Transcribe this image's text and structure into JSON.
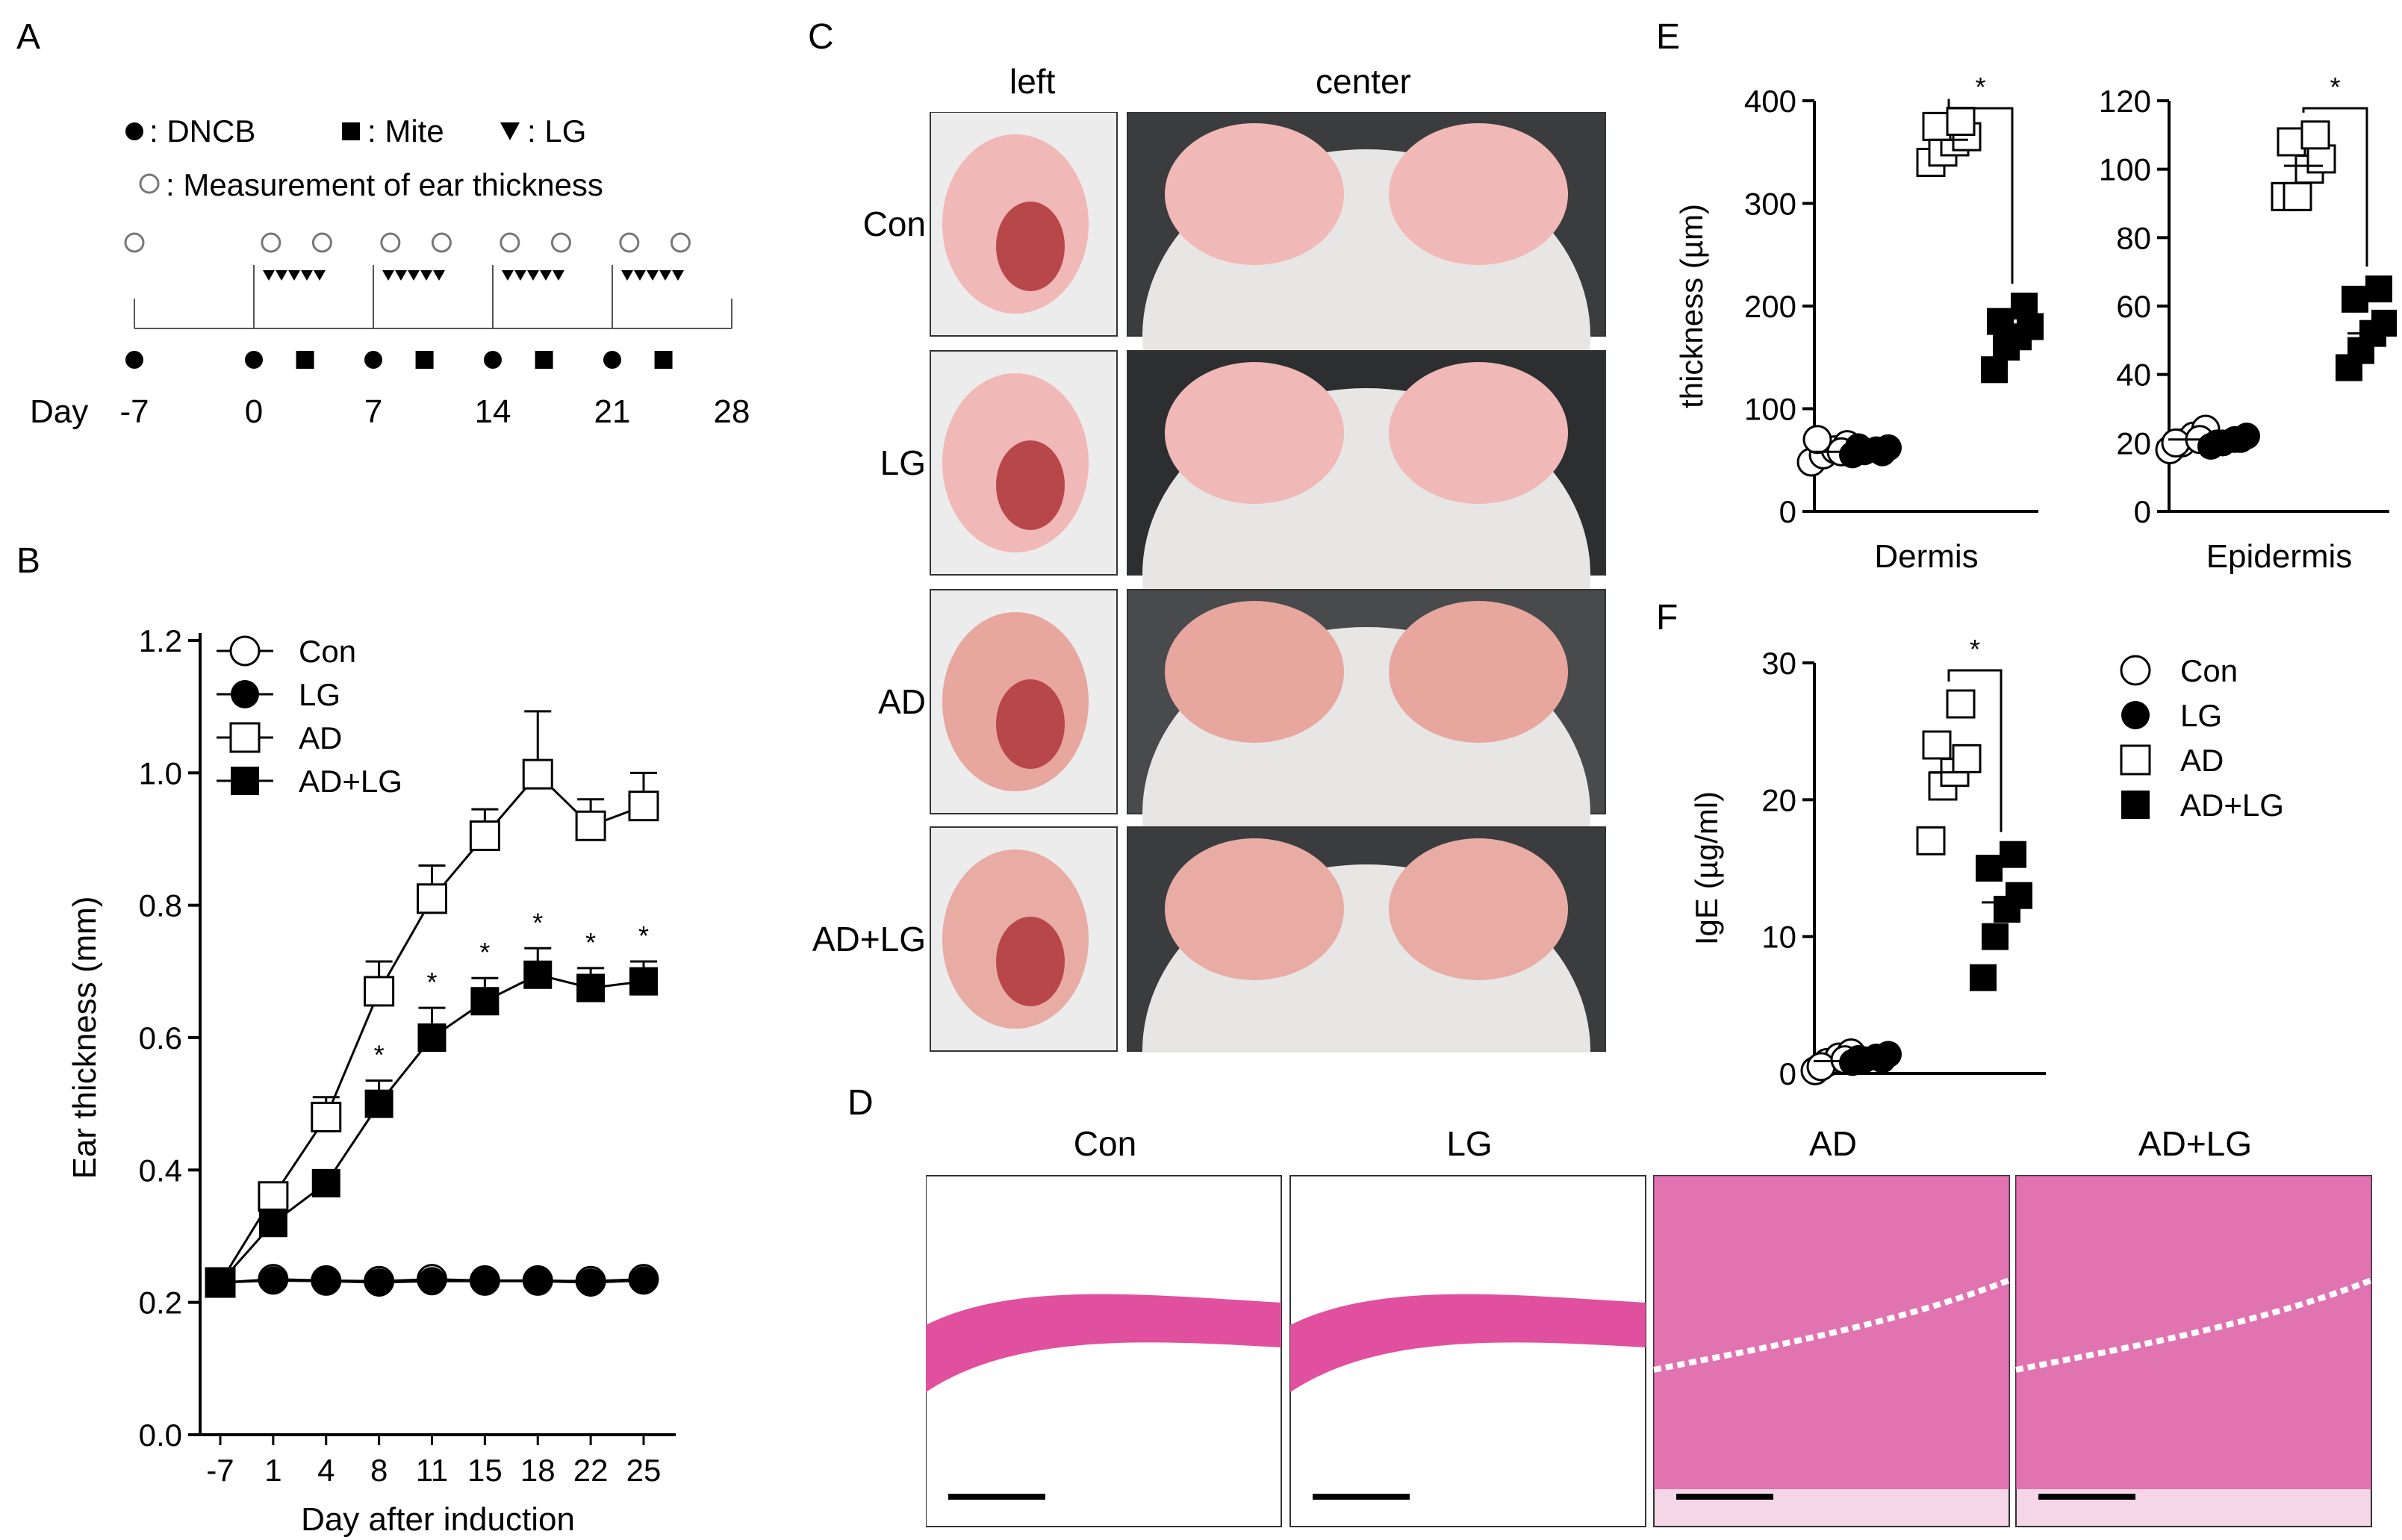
{
  "panels": {
    "A": "A",
    "B": "B",
    "C": "C",
    "D": "D",
    "E": "E",
    "F": "F"
  },
  "schedule": {
    "legend_dncb": ": DNCB",
    "legend_mite": ": Mite",
    "legend_lg": ": LG",
    "legend_measure": ": Measurement of ear thickness",
    "day_label": "Day",
    "day_ticks": [
      "-7",
      "0",
      "7",
      "14",
      "21",
      "28"
    ]
  },
  "photos": {
    "col_left": "left",
    "col_center": "center",
    "rows": [
      "Con",
      "LG",
      "AD",
      "AD+LG"
    ]
  },
  "histology": {
    "titles": [
      "Con",
      "LG",
      "AD",
      "AD+LG"
    ]
  },
  "colors": {
    "skin_pink": "#f0b8b6",
    "he_pink": "#e0509e",
    "fur": "#e8e6e4",
    "dark_bg": "#2a2c2e"
  },
  "chart_data": [
    {
      "type": "line",
      "panel": "B",
      "xlabel": "Day after induction",
      "ylabel": "Ear thickness (mm)",
      "categories": [
        "-7",
        "1",
        "4",
        "8",
        "11",
        "15",
        "18",
        "22",
        "25"
      ],
      "ylim": [
        0.0,
        1.2
      ],
      "yticks": [
        "0.0",
        "0.2",
        "0.4",
        "0.6",
        "0.8",
        "1.0",
        "1.2"
      ],
      "legend_position": "top-left",
      "series": [
        {
          "name": "Con",
          "marker": "open-circle",
          "values": [
            0.23,
            0.235,
            0.233,
            0.232,
            0.235,
            0.233,
            0.233,
            0.232,
            0.235
          ],
          "error": [
            0.005,
            0.005,
            0.005,
            0.005,
            0.01,
            0.005,
            0.005,
            0.005,
            0.005
          ]
        },
        {
          "name": "LG",
          "marker": "filled-circle",
          "values": [
            0.23,
            0.233,
            0.232,
            0.23,
            0.232,
            0.232,
            0.232,
            0.23,
            0.233
          ],
          "error": [
            0.005,
            0.005,
            0.005,
            0.005,
            0.005,
            0.005,
            0.005,
            0.005,
            0.005
          ]
        },
        {
          "name": "AD",
          "marker": "open-square",
          "values": [
            0.23,
            0.36,
            0.48,
            0.67,
            0.81,
            0.905,
            0.998,
            0.92,
            0.95
          ],
          "error": [
            0.005,
            0.02,
            0.03,
            0.045,
            0.05,
            0.04,
            0.095,
            0.04,
            0.05
          ]
        },
        {
          "name": "AD+LG",
          "marker": "filled-square",
          "values": [
            0.23,
            0.32,
            0.38,
            0.5,
            0.6,
            0.655,
            0.695,
            0.675,
            0.685
          ],
          "error": [
            0.005,
            0.02,
            0.02,
            0.035,
            0.045,
            0.035,
            0.04,
            0.03,
            0.03
          ]
        }
      ],
      "significance": [
        {
          "category": "8",
          "label": "*"
        },
        {
          "category": "11",
          "label": "*"
        },
        {
          "category": "15",
          "label": "*"
        },
        {
          "category": "18",
          "label": "*"
        },
        {
          "category": "22",
          "label": "*"
        },
        {
          "category": "25",
          "label": "*"
        }
      ]
    },
    {
      "type": "scatter",
      "panel": "E",
      "xlabel": "Dermis",
      "ylabel": "thickness (µm)",
      "ylim": [
        0,
        400
      ],
      "yticks": [
        "0",
        "100",
        "200",
        "300",
        "400"
      ],
      "groups": [
        {
          "name": "Con",
          "values": [
            48,
            55,
            60,
            65,
            70,
            58
          ],
          "mean": 58
        },
        {
          "name": "LG",
          "values": [
            55,
            58,
            60,
            62,
            63,
            57
          ],
          "mean": 60
        },
        {
          "name": "AD",
          "values": [
            340,
            350,
            360,
            365,
            375,
            380
          ],
          "mean": 362
        },
        {
          "name": "AD+LG",
          "values": [
            138,
            160,
            170,
            180,
            185,
            200
          ],
          "mean": 172
        }
      ],
      "significance": "*"
    },
    {
      "type": "scatter",
      "panel": "E",
      "xlabel": "Epidermis",
      "ylabel": "",
      "ylim": [
        0,
        120
      ],
      "yticks": [
        "0",
        "20",
        "40",
        "60",
        "80",
        "100",
        "120"
      ],
      "groups": [
        {
          "name": "Con",
          "values": [
            18,
            20,
            22,
            24,
            20,
            21
          ],
          "mean": 21
        },
        {
          "name": "LG",
          "values": [
            19,
            20,
            21,
            22,
            20,
            21
          ],
          "mean": 20
        },
        {
          "name": "AD",
          "values": [
            92,
            92,
            100,
            103,
            108,
            110
          ],
          "mean": 101
        },
        {
          "name": "AD+LG",
          "values": [
            42,
            47,
            52,
            55,
            62,
            65
          ],
          "mean": 52
        }
      ],
      "significance": "*"
    },
    {
      "type": "scatter",
      "panel": "F",
      "xlabel": "",
      "ylabel": "IgE (µg/ml)",
      "ylim": [
        0,
        30
      ],
      "yticks": [
        "0",
        "10",
        "20",
        "30"
      ],
      "groups": [
        {
          "name": "Con",
          "values": [
            0.2,
            0.8,
            1.2,
            1.5,
            0.5,
            1.0
          ],
          "mean": 0.9
        },
        {
          "name": "LG",
          "values": [
            0.8,
            1.0,
            1.2,
            1.4,
            1.1,
            1.0
          ],
          "mean": 1.1
        },
        {
          "name": "AD",
          "values": [
            17,
            21,
            22,
            23,
            24,
            27
          ],
          "mean": 22
        },
        {
          "name": "AD+LG",
          "values": [
            7,
            10,
            12,
            13,
            15,
            16
          ],
          "mean": 12.5
        }
      ],
      "significance": "*",
      "legend": [
        "Con",
        "LG",
        "AD",
        "AD+LG"
      ]
    }
  ]
}
